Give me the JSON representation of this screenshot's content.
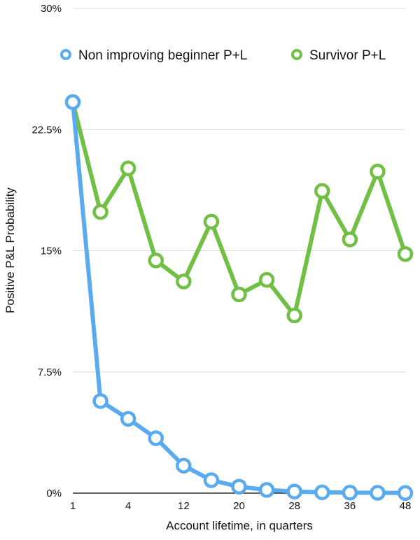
{
  "chart_data": {
    "type": "line",
    "title": "",
    "xlabel": "Account lifetime, in quarters",
    "ylabel": "Positive P&L Probability",
    "ylim": [
      0,
      30
    ],
    "y_ticks": [
      "0%",
      "7.5%",
      "15%",
      "22.5%",
      "30%"
    ],
    "y_tick_values": [
      0,
      7.5,
      15,
      22.5,
      30
    ],
    "x_tick_labels": [
      "1",
      "4",
      "12",
      "20",
      "28",
      "36",
      "48"
    ],
    "x_tick_indices": [
      0,
      2,
      4,
      6,
      8,
      10,
      12
    ],
    "grid": true,
    "legend_position": "top",
    "series": [
      {
        "name": "Non improving beginner P+L",
        "color": "#5aaaf0",
        "values": [
          24.2,
          5.7,
          4.6,
          3.4,
          1.7,
          0.8,
          0.4,
          0.2,
          0.1,
          0.05,
          0.03,
          0.02,
          0.01
        ]
      },
      {
        "name": "Survivor P+L",
        "color": "#71bf45",
        "values": [
          24.2,
          17.4,
          20.1,
          14.4,
          13.1,
          16.8,
          12.3,
          13.2,
          11.0,
          18.7,
          15.7,
          19.9,
          14.8
        ]
      }
    ]
  }
}
